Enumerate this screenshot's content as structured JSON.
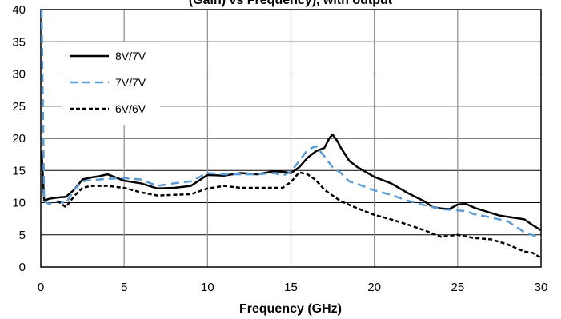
{
  "chart_data": {
    "type": "line",
    "title": "(Gain) vs Frequency), with output",
    "xlabel": "Frequency (GHz)",
    "ylabel": "",
    "xlim": [
      0,
      30
    ],
    "ylim": [
      0,
      40
    ],
    "xticks": [
      0,
      5,
      10,
      15,
      20,
      25,
      30
    ],
    "yticks": [
      0,
      5,
      10,
      15,
      20,
      25,
      30,
      35,
      40
    ],
    "grid": true,
    "legend_position": "top-left",
    "series": [
      {
        "name": "8V/7V",
        "color": "#000000",
        "style": "solid",
        "x": [
          0.05,
          0.2,
          0.5,
          1,
          1.5,
          2,
          2.5,
          3,
          3.5,
          4,
          5,
          6,
          7,
          8,
          9,
          10,
          11,
          12,
          13,
          14,
          14.5,
          15,
          15.5,
          16,
          16.5,
          17,
          17.3,
          17.5,
          17.8,
          18,
          18.5,
          19,
          20,
          21,
          22,
          23,
          23.5,
          24,
          24.5,
          25,
          25.5,
          26,
          27,
          27.5,
          28,
          29,
          29.5,
          30
        ],
        "values": [
          18,
          10.3,
          10.6,
          10.8,
          10.9,
          12,
          13.6,
          13.9,
          14.1,
          14.4,
          13.4,
          13,
          12.2,
          12.3,
          12.6,
          14.3,
          14.2,
          14.6,
          14.4,
          14.9,
          14.8,
          14.6,
          15.5,
          17,
          18,
          18.5,
          20,
          20.6,
          19.5,
          18.5,
          16.5,
          15.5,
          14,
          13,
          11.5,
          10.2,
          9.3,
          9.1,
          9.0,
          9.7,
          9.8,
          9.2,
          8.4,
          8.0,
          7.8,
          7.4,
          6.5,
          5.7
        ]
      },
      {
        "name": "7V/7V",
        "color": "#5b9bd5",
        "style": "dashed",
        "x": [
          0.05,
          0.2,
          0.5,
          1,
          1.5,
          2,
          2.5,
          3,
          4,
          5,
          6,
          7,
          8,
          9,
          10,
          11,
          12,
          13,
          14,
          14.5,
          15,
          15.5,
          16,
          16.5,
          17,
          17.5,
          18,
          18.5,
          19,
          20,
          21,
          22,
          23,
          24,
          25,
          25.5,
          26,
          27,
          28,
          29,
          30
        ],
        "values": [
          40,
          10.2,
          9.8,
          10.2,
          9.9,
          12,
          13.3,
          13.5,
          13.7,
          13.8,
          13.6,
          12.6,
          13,
          13.3,
          14.6,
          14.4,
          14.4,
          14.4,
          14.6,
          14.2,
          14.8,
          16.5,
          18.2,
          18.8,
          17.2,
          15.5,
          14.6,
          13.3,
          12.9,
          11.9,
          11.2,
          10.3,
          9.6,
          9.0,
          8.8,
          8.7,
          8.2,
          7.7,
          7.1,
          5.4,
          4.5
        ]
      },
      {
        "name": "6V/6V",
        "color": "#000000",
        "style": "dotted",
        "x": [
          1,
          1.5,
          2,
          2.5,
          3,
          4,
          5,
          6,
          7,
          8,
          9,
          10,
          11,
          12,
          13,
          14,
          14.5,
          15,
          15.5,
          16,
          16.5,
          17,
          18,
          19,
          20,
          21,
          22,
          23,
          24,
          25,
          26,
          27,
          28,
          29,
          29.5,
          30
        ],
        "values": [
          10.3,
          9.3,
          11,
          12.3,
          12.6,
          12.6,
          12.3,
          11.6,
          11.1,
          11.2,
          11.3,
          12.2,
          12.6,
          12.3,
          12.3,
          12.3,
          12.3,
          13.2,
          14.7,
          14.4,
          13.5,
          12,
          10.2,
          9.1,
          8.1,
          7.4,
          6.6,
          5.7,
          4.7,
          5.0,
          4.5,
          4.3,
          3.5,
          2.4,
          2.2,
          1.4
        ]
      }
    ]
  }
}
